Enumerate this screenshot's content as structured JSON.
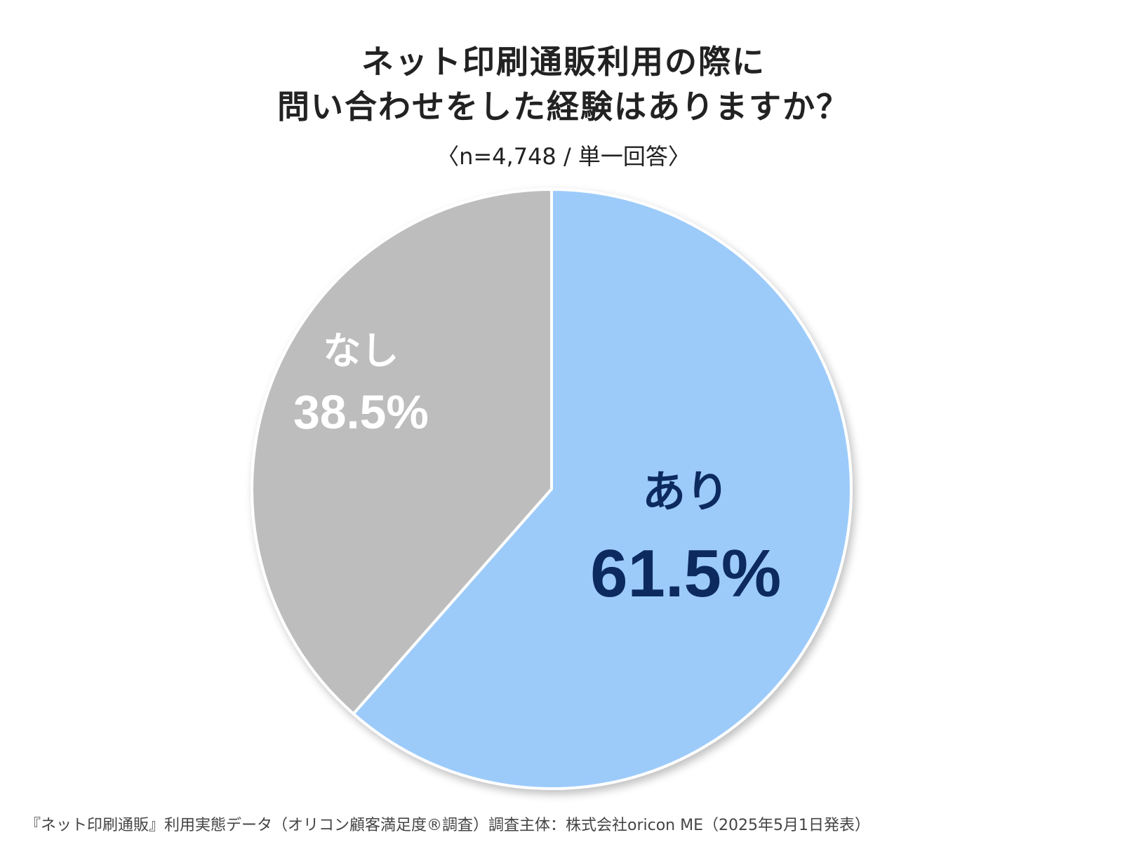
{
  "title_lines": [
    "ネット印刷通販利用の際に",
    "問い合わせをした経験はありますか？"
  ],
  "subtitle": "〈n=4,748 / 単一回答〉",
  "source_note": "『ネット印刷通販』利用実態データ（オリコン顧客満足度®調査）調査主体：株式会社oricon ME（2025年5月1日発表）",
  "chart_data": {
    "type": "pie",
    "title": "ネット印刷通販利用の際に問い合わせをした経験はありますか？",
    "n": "4,748",
    "start": "12 o'clock",
    "direction": "clockwise",
    "slices": [
      {
        "label": "あり",
        "value": 61.5,
        "value_label": "61.5%",
        "color": "#9ccbfa",
        "text_color": "#0d2a5e"
      },
      {
        "label": "なし",
        "value": 38.5,
        "value_label": "38.5%",
        "color": "#bdbdbd",
        "text_color": "#ffffff"
      }
    ]
  }
}
